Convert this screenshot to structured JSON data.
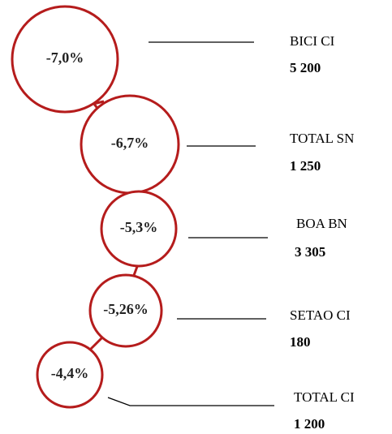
{
  "nodes": [
    {
      "percent": "-7,0%",
      "name": "BICI CI",
      "value": "5 200"
    },
    {
      "percent": "-6,7%",
      "name": "TOTAL SN",
      "value": "1 250"
    },
    {
      "percent": "-5,3%",
      "name": "BOA BN",
      "value": "3 305"
    },
    {
      "percent": "-5,26%",
      "name": "SETAO CI",
      "value": "180"
    },
    {
      "percent": "-4,4%",
      "name": "TOTAL CI",
      "value": "1 200"
    }
  ]
}
